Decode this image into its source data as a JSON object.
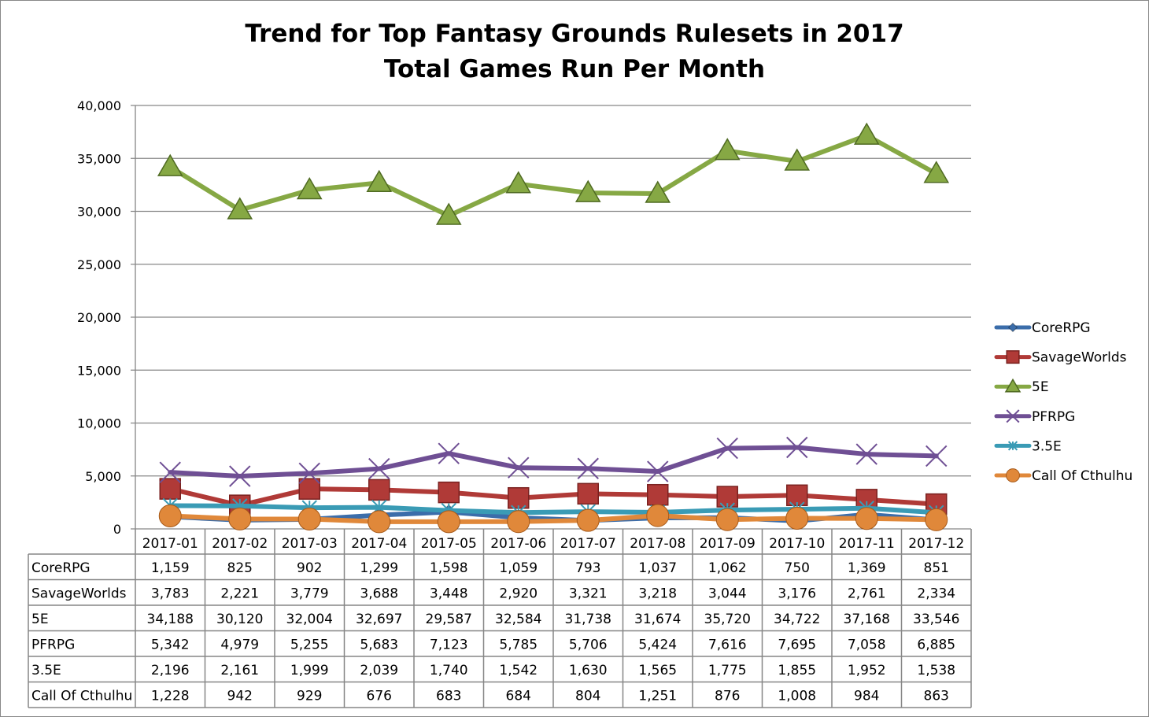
{
  "chart_data": {
    "type": "line",
    "title": "Trend for Top Fantasy Grounds Rulesets in 2017",
    "subtitle": "Total Games Run Per Month",
    "xlabel": "",
    "ylabel": "",
    "ylim": [
      0,
      40000
    ],
    "yticks": [
      0,
      5000,
      10000,
      15000,
      20000,
      25000,
      30000,
      35000,
      40000
    ],
    "ytick_labels": [
      "0",
      "5,000",
      "10,000",
      "15,000",
      "20,000",
      "25,000",
      "30,000",
      "35,000",
      "40,000"
    ],
    "grid": true,
    "legend_position": "right",
    "categories": [
      "2017-01",
      "2017-02",
      "2017-03",
      "2017-04",
      "2017-05",
      "2017-06",
      "2017-07",
      "2017-08",
      "2017-09",
      "2017-10",
      "2017-11",
      "2017-12"
    ],
    "series": [
      {
        "name": "CoreRPG",
        "color": "#3b6daa",
        "marker": "diamond",
        "values": [
          1159,
          825,
          902,
          1299,
          1598,
          1059,
          793,
          1037,
          1062,
          750,
          1369,
          851
        ]
      },
      {
        "name": "SavageWorlds",
        "color": "#b03a37",
        "marker": "square",
        "values": [
          3783,
          2221,
          3779,
          3688,
          3448,
          2920,
          3321,
          3218,
          3044,
          3176,
          2761,
          2334
        ]
      },
      {
        "name": "5E",
        "color": "#86a844",
        "marker": "triangle",
        "values": [
          34188,
          30120,
          32004,
          32697,
          29587,
          32584,
          31738,
          31674,
          35720,
          34722,
          37168,
          33546
        ]
      },
      {
        "name": "PFRPG",
        "color": "#6f4f94",
        "marker": "x",
        "values": [
          5342,
          4979,
          5255,
          5683,
          7123,
          5785,
          5706,
          5424,
          7616,
          7695,
          7058,
          6885
        ]
      },
      {
        "name": "3.5E",
        "color": "#3a9bb5",
        "marker": "star",
        "values": [
          2196,
          2161,
          1999,
          2039,
          1740,
          1542,
          1630,
          1565,
          1775,
          1855,
          1952,
          1538
        ]
      },
      {
        "name": "Call Of Cthulhu",
        "color": "#e0883a",
        "marker": "circle",
        "values": [
          1228,
          942,
          929,
          676,
          683,
          684,
          804,
          1251,
          876,
          1008,
          984,
          863
        ]
      }
    ],
    "table_values": [
      [
        "1,159",
        "825",
        "902",
        "1,299",
        "1,598",
        "1,059",
        "793",
        "1,037",
        "1,062",
        "750",
        "1,369",
        "851"
      ],
      [
        "3,783",
        "2,221",
        "3,779",
        "3,688",
        "3,448",
        "2,920",
        "3,321",
        "3,218",
        "3,044",
        "3,176",
        "2,761",
        "2,334"
      ],
      [
        "34,188",
        "30,120",
        "32,004",
        "32,697",
        "29,587",
        "32,584",
        "31,738",
        "31,674",
        "35,720",
        "34,722",
        "37,168",
        "33,546"
      ],
      [
        "5,342",
        "4,979",
        "5,255",
        "5,683",
        "7,123",
        "5,785",
        "5,706",
        "5,424",
        "7,616",
        "7,695",
        "7,058",
        "6,885"
      ],
      [
        "2,196",
        "2,161",
        "1,999",
        "2,039",
        "1,740",
        "1,542",
        "1,630",
        "1,565",
        "1,775",
        "1,855",
        "1,952",
        "1,538"
      ],
      [
        "1,228",
        "942",
        "929",
        "676",
        "683",
        "684",
        "804",
        "1,251",
        "876",
        "1,008",
        "984",
        "863"
      ]
    ]
  }
}
